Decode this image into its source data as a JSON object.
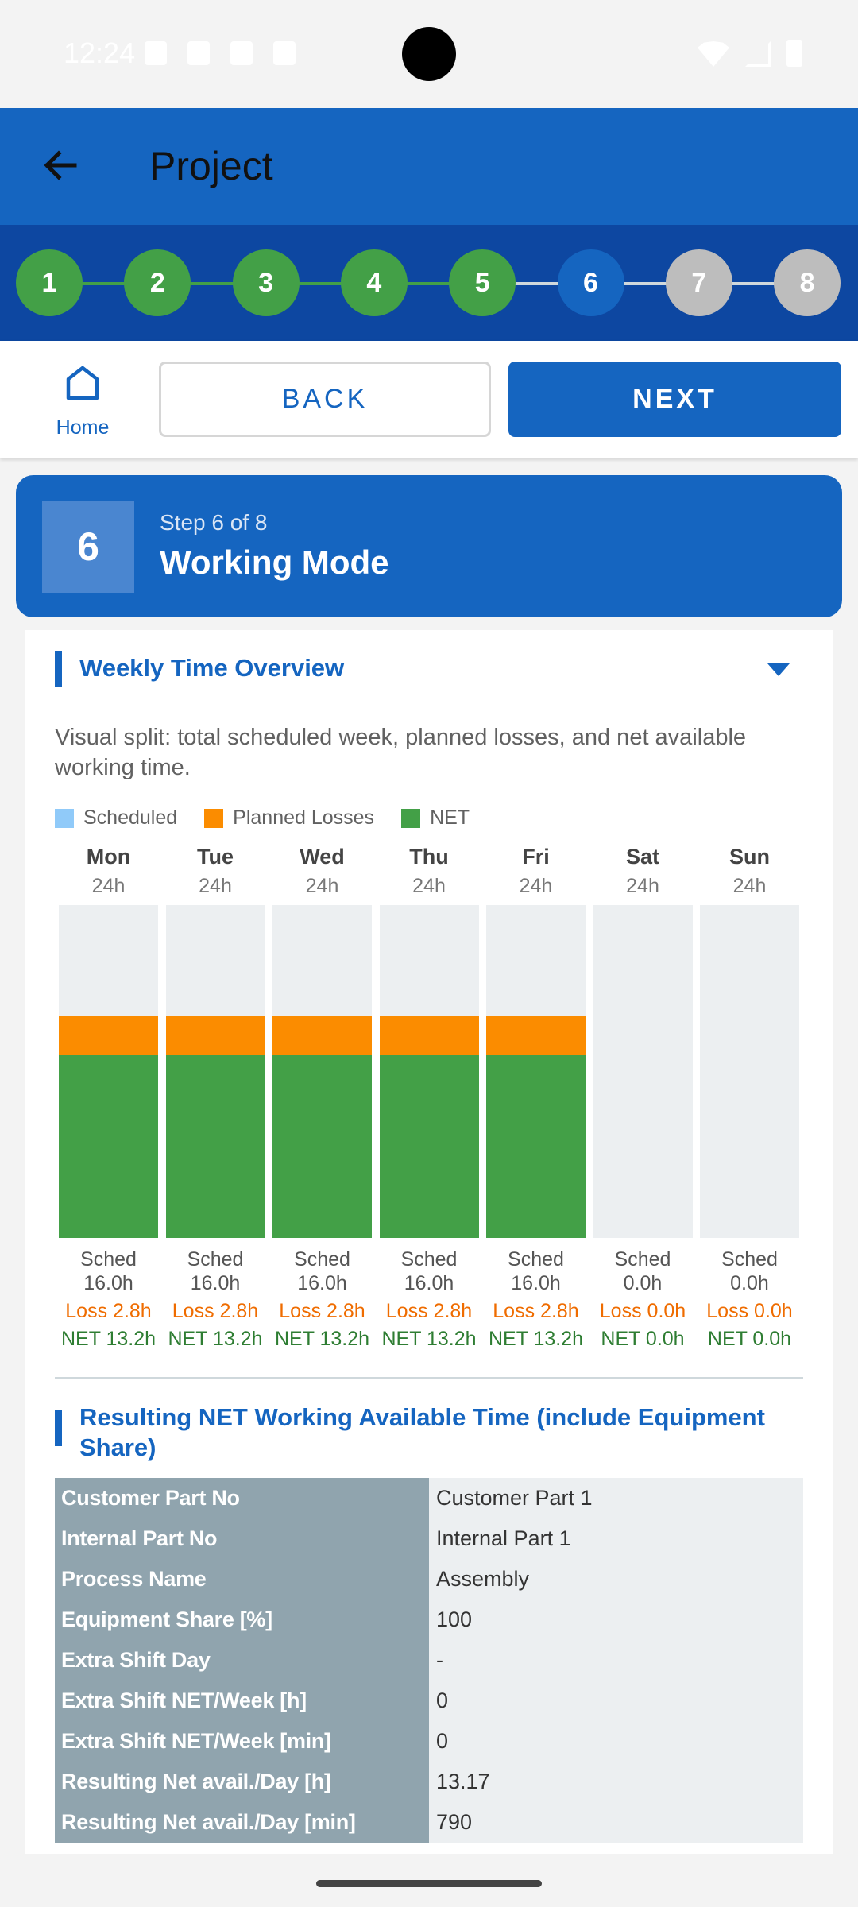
{
  "status_bar": {
    "time": "12:24"
  },
  "app_bar": {
    "title": "Project"
  },
  "stepper": {
    "steps": [
      {
        "label": "1",
        "color": "#43a047"
      },
      {
        "label": "2",
        "color": "#43a047"
      },
      {
        "label": "3",
        "color": "#43a047"
      },
      {
        "label": "4",
        "color": "#43a047"
      },
      {
        "label": "5",
        "color": "#43a047"
      },
      {
        "label": "6",
        "color": "#1565c0"
      },
      {
        "label": "7",
        "color": "#bdbdbd"
      },
      {
        "label": "8",
        "color": "#bdbdbd"
      }
    ]
  },
  "nav": {
    "home_label": "Home",
    "back_label": "BACK",
    "next_label": "NEXT"
  },
  "step_header": {
    "number": "6",
    "subtitle": "Step 6 of 8",
    "title": "Working Mode"
  },
  "weekly": {
    "title": "Weekly Time Overview",
    "description": "Visual split: total scheduled week, planned losses, and net available working time.",
    "legend": [
      {
        "label": "Scheduled",
        "color": "#90caf9"
      },
      {
        "label": "Planned Losses",
        "color": "#fb8c00"
      },
      {
        "label": "NET",
        "color": "#43a047"
      }
    ]
  },
  "chart_data": {
    "type": "bar",
    "stacked": true,
    "categories": [
      "Mon",
      "Tue",
      "Wed",
      "Thu",
      "Fri",
      "Sat",
      "Sun"
    ],
    "day_hours_label": [
      "24h",
      "24h",
      "24h",
      "24h",
      "24h",
      "24h",
      "24h"
    ],
    "total_hours": 24,
    "series": [
      {
        "name": "NET",
        "color": "#43a047",
        "values": [
          13.2,
          13.2,
          13.2,
          13.2,
          13.2,
          0.0,
          0.0
        ]
      },
      {
        "name": "Planned Losses",
        "color": "#fb8c00",
        "values": [
          2.8,
          2.8,
          2.8,
          2.8,
          2.8,
          0.0,
          0.0
        ]
      }
    ],
    "scheduled": [
      16.0,
      16.0,
      16.0,
      16.0,
      16.0,
      0.0,
      0.0
    ],
    "captions": [
      {
        "sched": "Sched 16.0h",
        "loss": "Loss 2.8h",
        "net": "NET 13.2h"
      },
      {
        "sched": "Sched 16.0h",
        "loss": "Loss 2.8h",
        "net": "NET 13.2h"
      },
      {
        "sched": "Sched 16.0h",
        "loss": "Loss 2.8h",
        "net": "NET 13.2h"
      },
      {
        "sched": "Sched 16.0h",
        "loss": "Loss 2.8h",
        "net": "NET 13.2h"
      },
      {
        "sched": "Sched 16.0h",
        "loss": "Loss 2.8h",
        "net": "NET 13.2h"
      },
      {
        "sched": "Sched 0.0h",
        "loss": "Loss 0.0h",
        "net": "NET 0.0h"
      },
      {
        "sched": "Sched 0.0h",
        "loss": "Loss 0.0h",
        "net": "NET 0.0h"
      }
    ],
    "background_color": "#eceff1",
    "loss_text_color": "#ef6c00",
    "net_text_color": "#2e7d32"
  },
  "result": {
    "title": "Resulting NET Working Available Time (include Equipment Share)",
    "rows": [
      {
        "key": "Customer Part No",
        "value": "Customer Part 1"
      },
      {
        "key": "Internal Part No",
        "value": "Internal Part 1"
      },
      {
        "key": "Process Name",
        "value": "Assembly"
      },
      {
        "key": "Equipment Share [%]",
        "value": "100"
      },
      {
        "key": "Extra Shift Day",
        "value": "-"
      },
      {
        "key": "Extra Shift NET/Week [h]",
        "value": "0"
      },
      {
        "key": "Extra Shift NET/Week [min]",
        "value": "0"
      },
      {
        "key": "Resulting Net avail./Day [h]",
        "value": "13.17"
      },
      {
        "key": "Resulting Net avail./Day [min]",
        "value": "790"
      }
    ]
  }
}
